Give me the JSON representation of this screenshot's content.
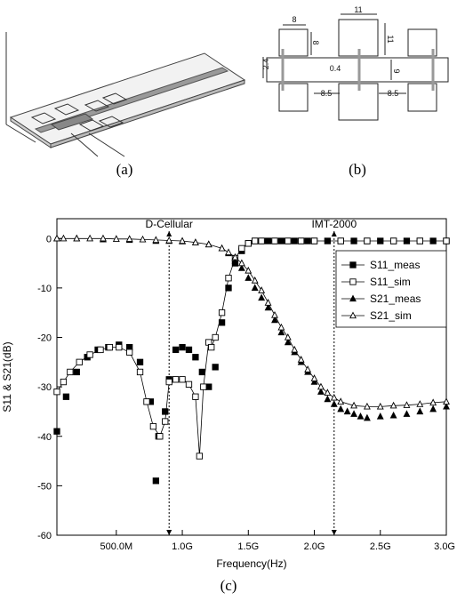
{
  "panels": {
    "a": {
      "caption": "(a)"
    },
    "b": {
      "caption": "(b)",
      "dims": {
        "d8a": "8",
        "d11a": "11",
        "d24": "2.4",
        "d8b": "8",
        "d11b": "11",
        "d04": "0.4",
        "d9": "9",
        "d85a": "8.5",
        "d85b": "8.5"
      }
    },
    "c": {
      "caption": "(c)"
    }
  },
  "chart_data": {
    "type": "line",
    "xlabel": "Frequency(Hz)",
    "ylabel": "S11 & S21(dB)",
    "xlim": [
      0.05,
      3.0
    ],
    "ylim": [
      -60,
      4
    ],
    "xticks": [
      {
        "v": 0.5,
        "label": "500.0M"
      },
      {
        "v": 1.0,
        "label": "1.0G"
      },
      {
        "v": 1.5,
        "label": "1.5G"
      },
      {
        "v": 2.0,
        "label": "2.0G"
      },
      {
        "v": 2.5,
        "label": "2.5G"
      },
      {
        "v": 3.0,
        "label": "3.0G"
      }
    ],
    "yticks": [
      0,
      -10,
      -20,
      -30,
      -40,
      -50,
      -60
    ],
    "grid": false,
    "legend_position": "right",
    "annotations": [
      {
        "label": "D-Cellular",
        "x": 0.9
      },
      {
        "label": "IMT-2000",
        "x": 2.15
      }
    ],
    "series": [
      {
        "name": "S11_meas",
        "marker": "square-filled",
        "style": "none",
        "x": [
          0.05,
          0.12,
          0.2,
          0.28,
          0.36,
          0.44,
          0.52,
          0.6,
          0.68,
          0.76,
          0.8,
          0.82,
          0.87,
          0.9,
          0.95,
          1.0,
          1.05,
          1.1,
          1.15,
          1.2,
          1.25,
          1.3,
          1.35,
          1.4,
          1.45,
          1.5,
          1.55,
          1.6,
          1.65,
          1.7,
          1.75,
          1.8,
          1.85,
          1.9,
          1.95,
          2.0,
          2.1,
          2.2,
          2.3,
          2.4,
          2.5,
          2.6,
          2.7,
          2.8,
          2.9,
          3.0
        ],
        "y": [
          -39,
          -32,
          -27,
          -24,
          -22.5,
          -22,
          -21.5,
          -22,
          -25,
          -33,
          -49,
          -40,
          -35,
          -28.5,
          -22.5,
          -22,
          -22.5,
          -24,
          -27,
          -30,
          -26,
          -17,
          -10,
          -5,
          -2.5,
          -1,
          -0.5,
          -0.5,
          -0.5,
          -0.5,
          -0.5,
          -0.5,
          -0.5,
          -0.5,
          -0.5,
          -0.5,
          -0.5,
          -0.5,
          -0.5,
          -0.5,
          -0.5,
          -0.5,
          -0.5,
          -0.5,
          -0.5,
          -0.5
        ]
      },
      {
        "name": "S11_sim",
        "marker": "square-open",
        "style": "solid",
        "x": [
          0.05,
          0.1,
          0.15,
          0.22,
          0.3,
          0.38,
          0.45,
          0.52,
          0.6,
          0.68,
          0.73,
          0.78,
          0.83,
          0.87,
          0.9,
          0.95,
          1.0,
          1.05,
          1.1,
          1.13,
          1.16,
          1.2,
          1.22,
          1.25,
          1.3,
          1.35,
          1.4,
          1.45,
          1.5,
          1.55,
          1.6,
          1.7,
          1.8,
          1.9,
          2.0,
          2.2,
          2.4,
          2.6,
          2.8,
          3.0
        ],
        "y": [
          -31,
          -29,
          -27,
          -25,
          -23.5,
          -22.5,
          -22,
          -22,
          -23,
          -27,
          -33,
          -38,
          -40,
          -37,
          -29,
          -28.5,
          -28.5,
          -29.5,
          -32,
          -44,
          -30,
          -21,
          -22,
          -20,
          -15,
          -8,
          -4,
          -2,
          -1,
          -0.5,
          -0.5,
          -0.5,
          -0.5,
          -0.5,
          -0.5,
          -0.5,
          -0.5,
          -0.5,
          -0.5,
          -0.5
        ]
      },
      {
        "name": "S21_meas",
        "marker": "triangle-filled",
        "style": "none",
        "x": [
          0.05,
          0.2,
          0.4,
          0.6,
          0.8,
          0.9,
          1.0,
          1.1,
          1.2,
          1.3,
          1.35,
          1.4,
          1.45,
          1.5,
          1.55,
          1.6,
          1.65,
          1.7,
          1.75,
          1.8,
          1.85,
          1.9,
          1.95,
          2.0,
          2.05,
          2.1,
          2.15,
          2.2,
          2.25,
          2.3,
          2.35,
          2.4,
          2.5,
          2.6,
          2.7,
          2.8,
          2.9,
          3.0
        ],
        "y": [
          0,
          0,
          -0.2,
          -0.3,
          -0.5,
          -0.5,
          -0.6,
          -0.8,
          -1.2,
          -2,
          -3,
          -4.5,
          -6,
          -8,
          -10,
          -12,
          -14,
          -16.5,
          -19,
          -21,
          -23,
          -25,
          -27,
          -29,
          -31,
          -32.5,
          -33.5,
          -34.5,
          -35,
          -35.5,
          -36,
          -36.3,
          -36,
          -35.8,
          -35.5,
          -35,
          -34.5,
          -34
        ]
      },
      {
        "name": "S21_sim",
        "marker": "triangle-open",
        "style": "solid",
        "x": [
          0.05,
          0.1,
          0.2,
          0.3,
          0.4,
          0.5,
          0.6,
          0.7,
          0.8,
          0.9,
          1.0,
          1.1,
          1.2,
          1.3,
          1.35,
          1.4,
          1.45,
          1.5,
          1.55,
          1.6,
          1.65,
          1.7,
          1.75,
          1.8,
          1.85,
          1.9,
          1.95,
          2.0,
          2.05,
          2.1,
          2.15,
          2.2,
          2.3,
          2.4,
          2.5,
          2.6,
          2.7,
          2.8,
          2.9,
          3.0
        ],
        "y": [
          0,
          0,
          0,
          0,
          0,
          -0.1,
          -0.1,
          -0.2,
          -0.3,
          -0.4,
          -0.5,
          -0.8,
          -1.2,
          -2,
          -2.8,
          -3.8,
          -5,
          -6.5,
          -8.5,
          -10.5,
          -13,
          -15.5,
          -18,
          -20,
          -22.5,
          -24.5,
          -26.5,
          -28.3,
          -30,
          -31.2,
          -32.2,
          -33,
          -33.8,
          -34,
          -34,
          -33.8,
          -33.7,
          -33.5,
          -33.2,
          -33
        ]
      }
    ]
  }
}
